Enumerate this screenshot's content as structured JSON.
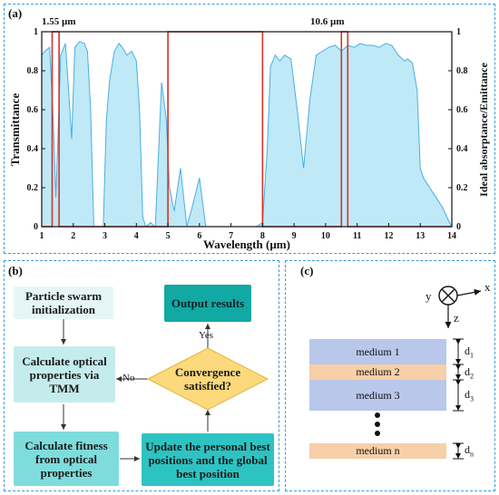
{
  "panel_a": {
    "label": "(a)",
    "marker_left": "1.55 µm",
    "marker_right": "10.6 µm",
    "xlabel": "Wavelength (µm)",
    "ylabel_left": "Transmittance",
    "ylabel_right": "Ideal absorptance/Emittance",
    "x_ticks": [
      "1",
      "2",
      "3",
      "4",
      "5",
      "6",
      "7",
      "8",
      "9",
      "10",
      "11",
      "12",
      "13",
      "14"
    ],
    "y_ticks_left": [
      "0",
      "0.2",
      "0.4",
      "0.6",
      "0.8",
      "1"
    ],
    "y_ticks_right": [
      "0",
      "0.2",
      "0.4",
      "0.6",
      "0.8",
      "1"
    ]
  },
  "chart_data": {
    "type": "area",
    "xlabel": "Wavelength (µm)",
    "ylabel": "Transmittance",
    "ylabel_right": "Ideal absorptance/Emittance",
    "xlim": [
      1,
      14
    ],
    "ylim": [
      0,
      1
    ],
    "series": [
      {
        "x": [
          1.0,
          1.1,
          1.25,
          1.35,
          1.45,
          1.6,
          1.75,
          1.85,
          1.95,
          2.05,
          2.2,
          2.35,
          2.45,
          2.55,
          2.65,
          2.8,
          2.95,
          3.05,
          3.15,
          3.3,
          3.45,
          3.55,
          3.7,
          3.85,
          4.0,
          4.1,
          4.2,
          4.3,
          4.45,
          4.6,
          4.8,
          4.95,
          5.05,
          5.2,
          5.4,
          5.6,
          5.8,
          6.0,
          6.2,
          6.4,
          6.6,
          6.8,
          7.0,
          7.4,
          7.8,
          8.0,
          8.15,
          8.25,
          8.4,
          8.55,
          8.7,
          8.9,
          9.1,
          9.3,
          9.5,
          9.7,
          9.9,
          10.1,
          10.3,
          10.5,
          10.7,
          10.9,
          11.1,
          11.3,
          11.5,
          11.7,
          11.9,
          12.1,
          12.3,
          12.5,
          12.6,
          12.75,
          12.9,
          13.0,
          13.1,
          13.3,
          13.5,
          13.7,
          13.9,
          14.0
        ],
        "y": [
          0.88,
          0.9,
          0.92,
          0.6,
          0.15,
          0.88,
          0.94,
          0.7,
          0.45,
          0.92,
          0.95,
          0.94,
          0.9,
          0.6,
          0.0,
          0.0,
          0.0,
          0.55,
          0.75,
          0.9,
          0.94,
          0.92,
          0.88,
          0.9,
          0.85,
          0.6,
          0.05,
          0.0,
          0.02,
          0.0,
          0.74,
          0.55,
          0.2,
          0.08,
          0.3,
          0.0,
          0.12,
          0.25,
          0.0,
          0.0,
          0.0,
          0.0,
          0.0,
          0.0,
          0.0,
          0.02,
          0.4,
          0.82,
          0.88,
          0.85,
          0.88,
          0.86,
          0.6,
          0.3,
          0.65,
          0.88,
          0.9,
          0.92,
          0.93,
          0.9,
          0.93,
          0.92,
          0.94,
          0.93,
          0.93,
          0.92,
          0.94,
          0.93,
          0.88,
          0.85,
          0.86,
          0.84,
          0.7,
          0.3,
          0.25,
          0.2,
          0.15,
          0.1,
          0.03,
          0.0
        ]
      },
      {
        "type": "step",
        "x": [
          1.0,
          1.33,
          1.33,
          1.55,
          1.55,
          5.0,
          5.0,
          8.0,
          8.0,
          10.5,
          10.5,
          10.7,
          10.7,
          14.0
        ],
        "y": [
          0,
          0,
          1,
          1,
          0,
          0,
          1,
          1,
          0,
          0,
          1,
          1,
          0,
          0
        ]
      }
    ]
  },
  "panel_b": {
    "label": "(b)",
    "init": "Particle swarm initialization",
    "calc_optical": "Calculate optical properties via TMM",
    "calc_fitness": "Calculate fitness from optical properties",
    "update": "Update the personal best positions and the global best position",
    "convergence": "Convergence satisfied?",
    "output": "Output results",
    "yes_label": "Yes",
    "no_label": "No"
  },
  "panel_c": {
    "label": "(c)",
    "axis_x": "x",
    "axis_y": "y",
    "axis_z": "z",
    "layers": [
      {
        "name": "medium 1",
        "thick": "d",
        "sub": "1",
        "color": "#b8c7ea"
      },
      {
        "name": "medium 2",
        "thick": "d",
        "sub": "2",
        "color": "#f7cfa8"
      },
      {
        "name": "medium 3",
        "thick": "d",
        "sub": "3",
        "color": "#b8c7ea"
      },
      {
        "name": "medium n",
        "thick": "d",
        "sub": "n",
        "color": "#f7cfa8"
      }
    ]
  }
}
